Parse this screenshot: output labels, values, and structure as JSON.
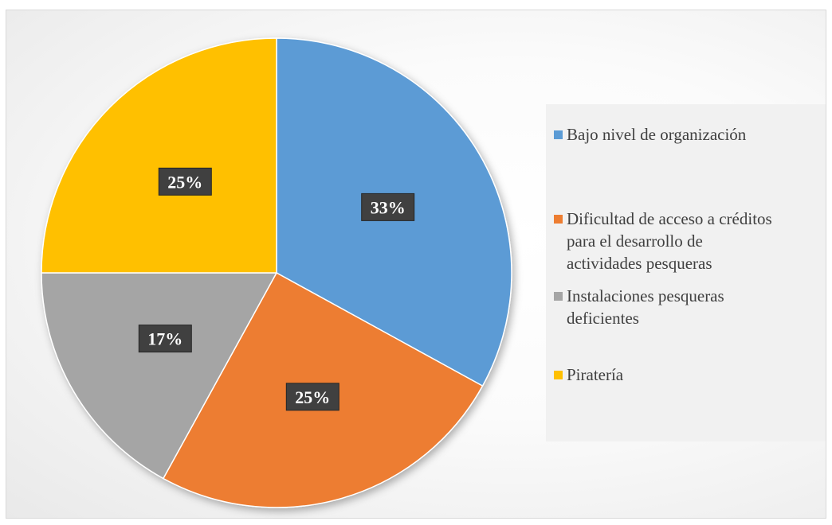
{
  "chart_data": {
    "type": "pie",
    "title": "",
    "legend_position": "right",
    "slices": [
      {
        "label": "Bajo nivel de organización",
        "value": 33,
        "display": "33%",
        "color": "#5B9BD5"
      },
      {
        "label": "Dificultad de acceso a créditos para el desarrollo de actividades pesqueras",
        "value": 25,
        "display": "25%",
        "color": "#ED7D31"
      },
      {
        "label": "Instalaciones pesqueras deficientes",
        "value": 17,
        "display": "17%",
        "color": "#A5A5A5"
      },
      {
        "label": "Piratería",
        "value": 25,
        "display": "25%",
        "color": "#FFC000"
      }
    ]
  },
  "legend": {
    "items": [
      {
        "text": "Bajo nivel de organización",
        "color": "#5B9BD5"
      },
      {
        "text": "Dificultad de acceso a créditos\npara el desarrollo de\nactividades pesqueras",
        "color": "#ED7D31"
      },
      {
        "text": "Instalaciones pesqueras\ndeficientes",
        "color": "#A5A5A5"
      },
      {
        "text": "Piratería",
        "color": "#FFC000"
      }
    ]
  }
}
